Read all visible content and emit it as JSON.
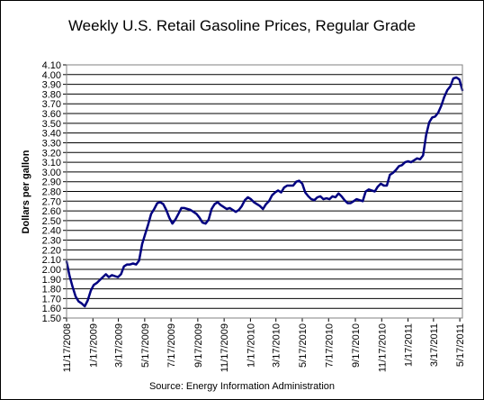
{
  "chart_data": {
    "type": "line",
    "title": "Weekly U.S. Retail Gasoline Prices, Regular Grade",
    "ylabel": "Dollars per gallon",
    "xlabel": "",
    "source": "Source:  Energy Information Administration",
    "ylim": [
      1.5,
      4.1
    ],
    "yticks": [
      "1.50",
      "1.60",
      "1.70",
      "1.80",
      "1.90",
      "2.00",
      "2.10",
      "2.20",
      "2.30",
      "2.40",
      "2.50",
      "2.60",
      "2.70",
      "2.80",
      "2.90",
      "3.00",
      "3.10",
      "3.20",
      "3.30",
      "3.40",
      "3.50",
      "3.60",
      "3.70",
      "3.80",
      "3.90",
      "4.00",
      "4.10"
    ],
    "xlim": [
      "2008-11-17",
      "2011-05-23"
    ],
    "xticks": [
      "11/17/2008",
      "1/17/2009",
      "3/17/2009",
      "5/17/2009",
      "7/17/2009",
      "9/17/2009",
      "11/17/2009",
      "1/17/2010",
      "3/17/2010",
      "5/17/2010",
      "7/17/2010",
      "9/17/2010",
      "11/17/2010",
      "1/17/2011",
      "3/17/2011",
      "5/17/2011"
    ],
    "grid": "horizontal",
    "legend": "none",
    "series_color": "#000080",
    "x": [
      "2008-11-17",
      "2008-11-24",
      "2008-12-01",
      "2008-12-08",
      "2008-12-15",
      "2008-12-22",
      "2008-12-29",
      "2009-01-05",
      "2009-01-12",
      "2009-01-19",
      "2009-01-26",
      "2009-02-02",
      "2009-02-09",
      "2009-02-16",
      "2009-02-23",
      "2009-03-02",
      "2009-03-09",
      "2009-03-16",
      "2009-03-23",
      "2009-03-30",
      "2009-04-06",
      "2009-04-13",
      "2009-04-20",
      "2009-04-27",
      "2009-05-04",
      "2009-05-11",
      "2009-05-18",
      "2009-05-25",
      "2009-06-01",
      "2009-06-08",
      "2009-06-15",
      "2009-06-22",
      "2009-06-29",
      "2009-07-06",
      "2009-07-13",
      "2009-07-20",
      "2009-07-27",
      "2009-08-03",
      "2009-08-10",
      "2009-08-17",
      "2009-08-24",
      "2009-08-31",
      "2009-09-07",
      "2009-09-14",
      "2009-09-21",
      "2009-09-28",
      "2009-10-05",
      "2009-10-12",
      "2009-10-19",
      "2009-10-26",
      "2009-11-02",
      "2009-11-09",
      "2009-11-16",
      "2009-11-23",
      "2009-11-30",
      "2009-12-07",
      "2009-12-14",
      "2009-12-21",
      "2009-12-28",
      "2010-01-04",
      "2010-01-11",
      "2010-01-18",
      "2010-01-25",
      "2010-02-01",
      "2010-02-08",
      "2010-02-15",
      "2010-02-22",
      "2010-03-01",
      "2010-03-08",
      "2010-03-15",
      "2010-03-22",
      "2010-03-29",
      "2010-04-05",
      "2010-04-12",
      "2010-04-19",
      "2010-04-26",
      "2010-05-03",
      "2010-05-10",
      "2010-05-17",
      "2010-05-24",
      "2010-05-31",
      "2010-06-07",
      "2010-06-14",
      "2010-06-21",
      "2010-06-28",
      "2010-07-05",
      "2010-07-12",
      "2010-07-19",
      "2010-07-26",
      "2010-08-02",
      "2010-08-09",
      "2010-08-16",
      "2010-08-23",
      "2010-08-30",
      "2010-09-06",
      "2010-09-13",
      "2010-09-20",
      "2010-09-27",
      "2010-10-04",
      "2010-10-11",
      "2010-10-18",
      "2010-10-25",
      "2010-11-01",
      "2010-11-08",
      "2010-11-15",
      "2010-11-22",
      "2010-11-29",
      "2010-12-06",
      "2010-12-13",
      "2010-12-20",
      "2010-12-27",
      "2011-01-03",
      "2011-01-10",
      "2011-01-17",
      "2011-01-24",
      "2011-01-31",
      "2011-02-07",
      "2011-02-14",
      "2011-02-21",
      "2011-02-28",
      "2011-03-07",
      "2011-03-14",
      "2011-03-21",
      "2011-03-28",
      "2011-04-04",
      "2011-04-11",
      "2011-04-18",
      "2011-04-25",
      "2011-05-02",
      "2011-05-09",
      "2011-05-16",
      "2011-05-23"
    ],
    "series": [
      {
        "values": [
          2.08,
          1.93,
          1.82,
          1.72,
          1.67,
          1.65,
          1.62,
          1.68,
          1.78,
          1.84,
          1.86,
          1.89,
          1.92,
          1.95,
          1.92,
          1.94,
          1.93,
          1.92,
          1.95,
          2.03,
          2.05,
          2.05,
          2.06,
          2.05,
          2.09,
          2.26,
          2.36,
          2.46,
          2.57,
          2.62,
          2.68,
          2.69,
          2.67,
          2.61,
          2.53,
          2.47,
          2.51,
          2.57,
          2.63,
          2.63,
          2.62,
          2.61,
          2.59,
          2.57,
          2.53,
          2.48,
          2.47,
          2.51,
          2.62,
          2.67,
          2.69,
          2.66,
          2.64,
          2.62,
          2.63,
          2.61,
          2.59,
          2.61,
          2.65,
          2.71,
          2.74,
          2.72,
          2.69,
          2.67,
          2.65,
          2.62,
          2.67,
          2.7,
          2.76,
          2.79,
          2.81,
          2.79,
          2.84,
          2.86,
          2.86,
          2.86,
          2.9,
          2.91,
          2.88,
          2.79,
          2.75,
          2.72,
          2.71,
          2.74,
          2.75,
          2.72,
          2.73,
          2.72,
          2.75,
          2.74,
          2.78,
          2.75,
          2.71,
          2.68,
          2.68,
          2.7,
          2.72,
          2.71,
          2.7,
          2.8,
          2.82,
          2.81,
          2.8,
          2.85,
          2.88,
          2.86,
          2.86,
          2.97,
          2.99,
          3.02,
          3.06,
          3.07,
          3.1,
          3.11,
          3.1,
          3.12,
          3.14,
          3.13,
          3.17,
          3.38,
          3.51,
          3.56,
          3.57,
          3.61,
          3.68,
          3.77,
          3.84,
          3.88,
          3.96,
          3.97,
          3.95,
          3.84
        ]
      }
    ]
  }
}
